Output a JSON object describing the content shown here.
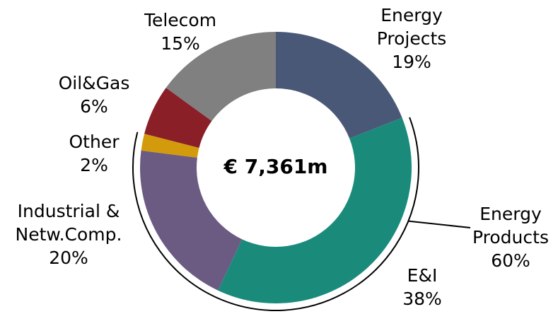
{
  "chart_data": {
    "type": "donut",
    "categories": [
      "Energy\nProjects",
      "E&I",
      "Industrial &\nNetw.Comp.",
      "Other",
      "Oil&Gas",
      "Telecom"
    ],
    "values": [
      19,
      38,
      20,
      2,
      6,
      15
    ],
    "value_labels": [
      "19%",
      "38%",
      "20%",
      "2%",
      "6%",
      "15%"
    ],
    "colors": [
      "#4a5878",
      "#1a8b7b",
      "#6b5b83",
      "#d39b0c",
      "#8a1f28",
      "#808080"
    ],
    "center_label": "€ 7,361m",
    "annotation": {
      "text": "Energy\nProducts",
      "label": "60%"
    }
  }
}
